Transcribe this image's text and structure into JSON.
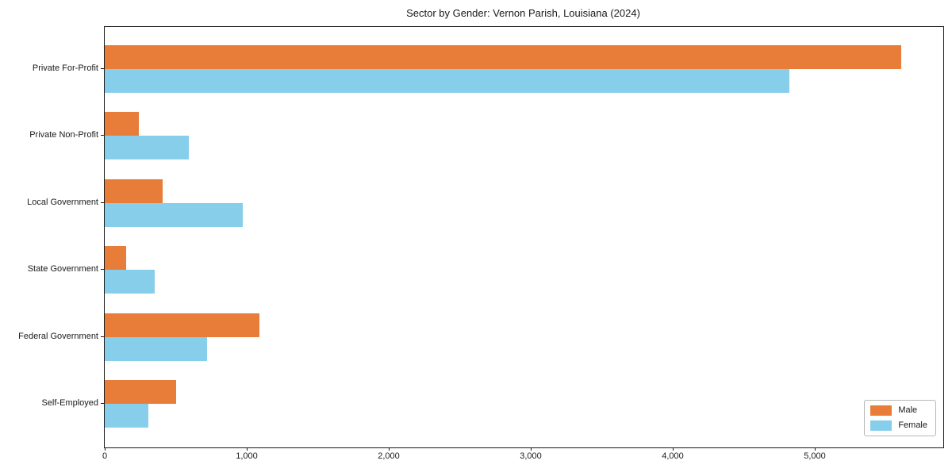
{
  "title": "Sector by Gender: Vernon Parish, Louisiana (2024)",
  "chart_data": {
    "type": "bar",
    "orientation": "horizontal",
    "title": "Sector by Gender: Vernon Parish, Louisiana (2024)",
    "categories": [
      "Private For-Profit",
      "Private Non-Profit",
      "Local Government",
      "State Government",
      "Federal Government",
      "Self-Employed"
    ],
    "series": [
      {
        "name": "Male",
        "color": "#e87d3a",
        "values": [
          5610,
          240,
          410,
          150,
          1090,
          500
        ]
      },
      {
        "name": "Female",
        "color": "#87ceeb",
        "values": [
          4820,
          590,
          970,
          350,
          720,
          310
        ]
      }
    ],
    "xlabel": "",
    "ylabel": "",
    "xlim": [
      0,
      5900
    ],
    "xticks": [
      0,
      1000,
      2000,
      3000,
      4000,
      5000
    ],
    "xtick_labels": [
      "0",
      "1,000",
      "2,000",
      "3,000",
      "4,000",
      "5,000"
    ],
    "grid": false,
    "legend_position": "lower right"
  }
}
